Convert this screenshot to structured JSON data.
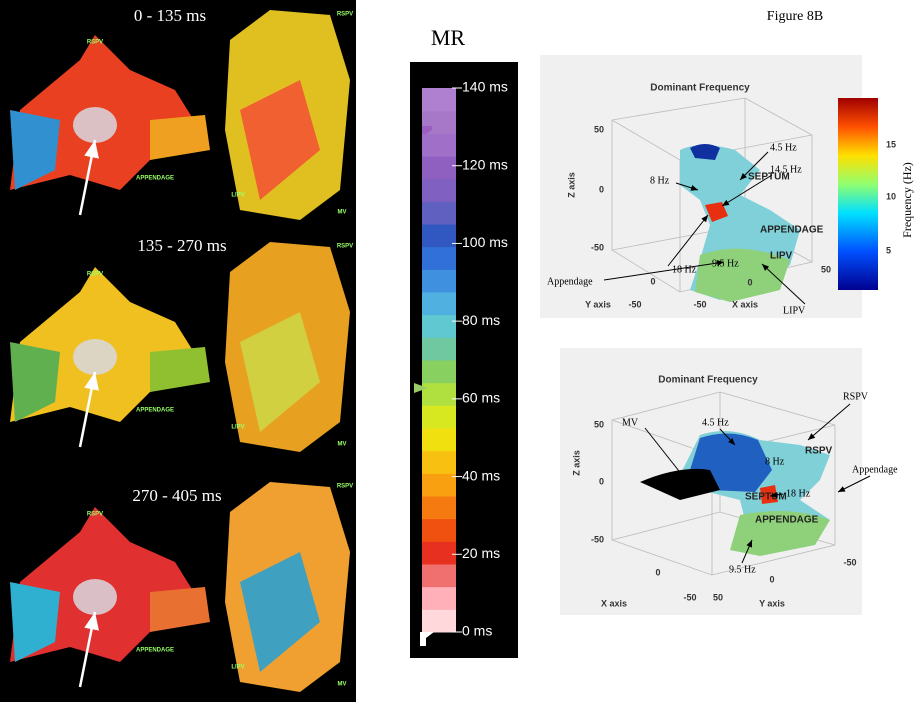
{
  "left_panels": [
    {
      "label": "0 - 135 ms",
      "tags": [
        "RSPV",
        "APPENDAGE",
        "RSPV",
        "LIPV",
        "MV"
      ]
    },
    {
      "label": "135 - 270 ms",
      "tags": [
        "RSPV",
        "APPENDAGE",
        "RSPV",
        "LIPV",
        "MV"
      ]
    },
    {
      "label": "270 - 405 ms",
      "tags": [
        "RSPV",
        "APPENDAGE",
        "RSPV",
        "LIPV",
        "MV"
      ]
    }
  ],
  "scale": {
    "title": "MR",
    "labels": [
      "140 ms",
      "120 ms",
      "100 ms",
      "80 ms",
      "60 ms",
      "40 ms",
      "20 ms",
      "0 ms"
    ]
  },
  "figure": {
    "title": "Figure 8B",
    "top_plot": {
      "title": "Dominant Frequency",
      "colorbar_label": "Frequency (Hz)",
      "colorbar_ticks": [
        "15",
        "10",
        "5"
      ],
      "z_label": "Z axis",
      "z_ticks": [
        "50",
        "0",
        "-50"
      ],
      "y_label": "Y axis",
      "y_ticks": [
        "-50",
        "0"
      ],
      "x_label": "X axis",
      "x_ticks": [
        "-50",
        "0",
        "50"
      ],
      "inner_labels": [
        "SEPTUM",
        "APPENDAGE",
        "LIPV"
      ],
      "annotations": [
        "8 Hz",
        "4.5 Hz",
        "14.5 Hz",
        "18 Hz",
        "9.5 Hz",
        "Appendage",
        "LIPV"
      ]
    },
    "bottom_plot": {
      "title": "Dominant Frequency",
      "z_label": "Z axis",
      "z_ticks": [
        "50",
        "0",
        "-50"
      ],
      "x_label": "X axis",
      "x_ticks": [
        "0",
        "-50"
      ],
      "y_label": "Y axis",
      "y_ticks": [
        "50",
        "0",
        "-50"
      ],
      "inner_labels": [
        "RSPV",
        "SEPTUM",
        "APPENDAGE"
      ],
      "annotations": [
        "MV",
        "RSPV",
        "4.5 Hz",
        "8 Hz",
        "18 Hz",
        "Appendage",
        "9.5 Hz"
      ]
    }
  }
}
